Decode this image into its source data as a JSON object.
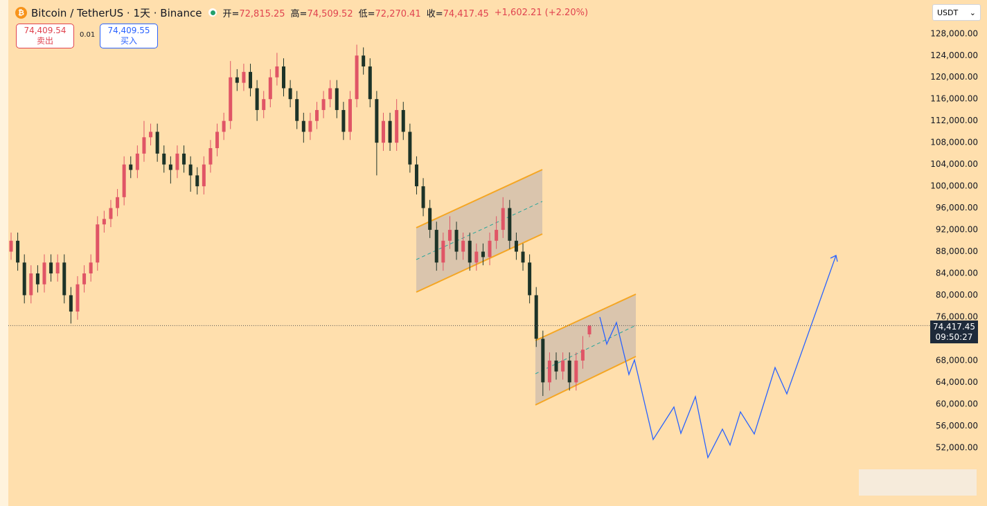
{
  "header": {
    "title": "Bitcoin / TetherUS · 1天 · Binance",
    "ohlc": [
      {
        "label": "开=",
        "value": "72,815.25"
      },
      {
        "label": "高=",
        "value": "74,509.52"
      },
      {
        "label": "低=",
        "value": "72,270.41"
      },
      {
        "label": "收=",
        "value": "74,417.45"
      }
    ],
    "change": "+1,602.21 (+2.20%)"
  },
  "order_panel": {
    "sell_price": "74,409.54",
    "sell_label": "卖出",
    "spread": "0.01",
    "buy_price": "74,409.55",
    "buy_label": "买入"
  },
  "currency_select": "USDT",
  "chart_data": {
    "type": "candlestick",
    "up_color": "#e05566",
    "down_color": "#1c3328",
    "open": [
      88000,
      90000,
      86000,
      80000,
      84000,
      82000,
      86000,
      84000,
      86000,
      80000,
      77000,
      82000,
      84000,
      86000,
      93000,
      94000,
      96000,
      98000,
      104000,
      103000,
      106000,
      109000,
      110000,
      106000,
      104000,
      103000,
      106000,
      104000,
      102000,
      100000,
      104000,
      107000,
      110000,
      112000,
      120000,
      119000,
      121000,
      118000,
      114000,
      116000,
      120000,
      122000,
      118000,
      116000,
      112000,
      110000,
      112000,
      114000,
      116000,
      118000,
      114000,
      110000,
      116000,
      124000,
      122000,
      116000,
      108000,
      112000,
      108000,
      114000,
      110000,
      104000,
      100000,
      96000,
      92000,
      86000,
      90000,
      92000,
      88000,
      90000,
      86000,
      88000,
      87000,
      90000,
      92000,
      96000,
      90000,
      88000,
      86000,
      80000,
      72000,
      64000,
      68000,
      66000,
      68000,
      64000,
      68000,
      72815.25
    ],
    "high": [
      91500,
      91500,
      87500,
      85500,
      85500,
      87500,
      87500,
      87500,
      87500,
      81500,
      83500,
      85500,
      87500,
      94500,
      95500,
      97500,
      99500,
      105500,
      105500,
      107500,
      112000,
      111500,
      111500,
      107500,
      105500,
      107500,
      107500,
      105500,
      103500,
      105500,
      108500,
      111500,
      113500,
      123000,
      121500,
      122500,
      122500,
      119500,
      117500,
      121500,
      124500,
      123500,
      119500,
      117500,
      113500,
      113500,
      115500,
      117500,
      119500,
      119500,
      115500,
      117500,
      126000,
      125500,
      123500,
      117500,
      113500,
      113500,
      116000,
      115500,
      111500,
      105500,
      101500,
      97500,
      93500,
      91500,
      94500,
      93500,
      91500,
      91500,
      89500,
      89500,
      91500,
      94500,
      98000,
      97500,
      91500,
      89500,
      87500,
      81500,
      73500,
      69500,
      69500,
      69500,
      69500,
      69500,
      72500,
      74509.52
    ],
    "low": [
      86500,
      84500,
      78500,
      78500,
      80500,
      80500,
      82500,
      82500,
      78500,
      74800,
      75500,
      80500,
      82500,
      84500,
      91500,
      92500,
      94500,
      96500,
      101500,
      101500,
      104500,
      107500,
      104500,
      102500,
      100500,
      101500,
      102500,
      99000,
      98500,
      98500,
      102500,
      105500,
      108500,
      110500,
      117500,
      117500,
      116500,
      112000,
      112500,
      114500,
      118500,
      116500,
      114500,
      110500,
      108000,
      108500,
      110500,
      112500,
      114500,
      112500,
      108500,
      108500,
      114500,
      120500,
      114500,
      102000,
      106500,
      106500,
      106500,
      108500,
      102500,
      98500,
      94500,
      90500,
      84500,
      84500,
      88500,
      86500,
      86500,
      84500,
      84500,
      85500,
      85500,
      88500,
      90500,
      88500,
      86500,
      84500,
      78500,
      70500,
      61500,
      62500,
      64500,
      64500,
      62500,
      62500,
      66500,
      72270.41
    ],
    "close": [
      90000,
      86000,
      80000,
      84000,
      82000,
      86000,
      84000,
      86000,
      80000,
      77000,
      82000,
      84000,
      86000,
      93000,
      94000,
      96000,
      98000,
      104000,
      103000,
      106000,
      109000,
      110000,
      106000,
      104000,
      103000,
      106000,
      104000,
      102000,
      100000,
      104000,
      107000,
      110000,
      112000,
      120000,
      119000,
      121000,
      118000,
      114000,
      116000,
      120000,
      122000,
      118000,
      116000,
      112000,
      110000,
      112000,
      114000,
      116000,
      118000,
      114000,
      110000,
      116000,
      124000,
      122000,
      116000,
      108000,
      112000,
      108000,
      114000,
      110000,
      104000,
      100000,
      96000,
      92000,
      86000,
      90000,
      92000,
      88000,
      90000,
      86000,
      88000,
      87000,
      90000,
      92000,
      96000,
      90000,
      88000,
      86000,
      80000,
      72000,
      64000,
      68000,
      66000,
      68000,
      64000,
      68000,
      70000,
      74417.45
    ],
    "ylim": [
      41300,
      134200
    ],
    "yticks": [
      {
        "value": 52000,
        "label": "52,000.00"
      },
      {
        "value": 56000,
        "label": "56,000.00"
      },
      {
        "value": 60000,
        "label": "60,000.00"
      },
      {
        "value": 64000,
        "label": "64,000.00"
      },
      {
        "value": 68000,
        "label": "68,000.00"
      },
      {
        "value": 72000,
        "label": "72,000.00"
      },
      {
        "value": 76000,
        "label": "76,000.00"
      },
      {
        "value": 80000,
        "label": "80,000.00"
      },
      {
        "value": 84000,
        "label": "84,000.00"
      },
      {
        "value": 88000,
        "label": "88,000.00"
      },
      {
        "value": 92000,
        "label": "92,000.00"
      },
      {
        "value": 96000,
        "label": "96,000.00"
      },
      {
        "value": 100000,
        "label": "100,000.00"
      },
      {
        "value": 104000,
        "label": "104,000.00"
      },
      {
        "value": 108000,
        "label": "108,000.00"
      },
      {
        "value": 112000,
        "label": "112,000.00"
      },
      {
        "value": 116000,
        "label": "116,000.00"
      },
      {
        "value": 120000,
        "label": "120,000.00"
      },
      {
        "value": 124000,
        "label": "124,000.00"
      },
      {
        "value": 128000,
        "label": "128,000.00"
      }
    ],
    "last_price": {
      "value": 74417.45,
      "label": "74,417.45"
    },
    "countdown": "09:50:27"
  }
}
